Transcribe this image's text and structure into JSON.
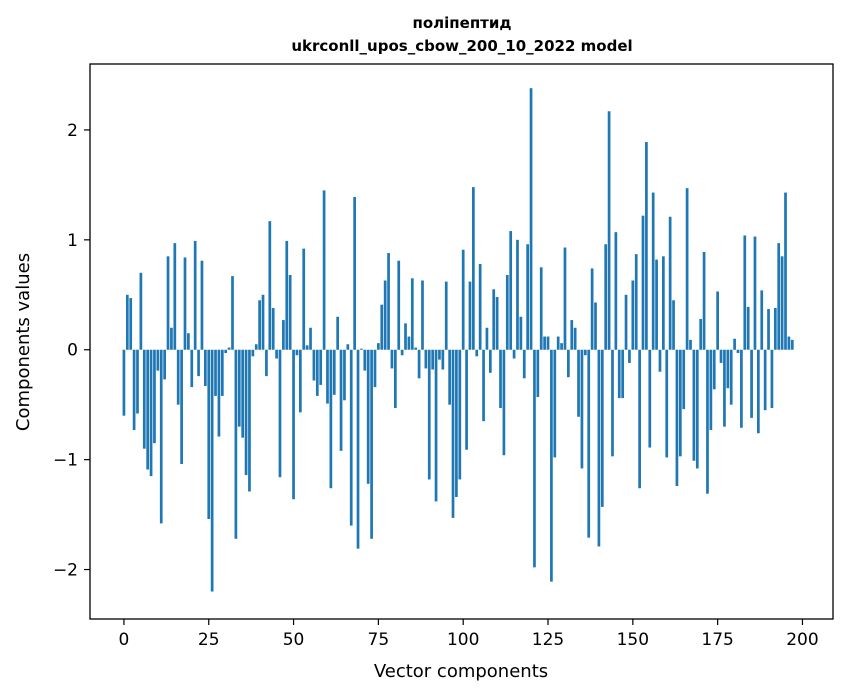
{
  "chart_data": {
    "type": "bar",
    "title": "поліпептид",
    "subtitle": "ukrconll_upos_cbow_200_10_2022 model",
    "xlabel": "Vector components",
    "ylabel": "Components values",
    "xlim": [
      -10,
      209
    ],
    "ylim": [
      -2.45,
      2.6
    ],
    "xticks": [
      0,
      25,
      50,
      75,
      100,
      125,
      150,
      175,
      200
    ],
    "yticks": [
      -2,
      -1,
      0,
      1,
      2
    ],
    "ytick_labels": [
      "−2",
      "−1",
      "0",
      "1",
      "2"
    ],
    "bar_color": "#1f77b4",
    "grid": false,
    "values": [
      -0.6,
      0.5,
      0.47,
      -0.73,
      -0.58,
      0.7,
      -0.9,
      -1.09,
      -1.15,
      -0.85,
      -0.19,
      -1.58,
      -0.27,
      0.85,
      0.2,
      0.97,
      -0.5,
      -1.04,
      0.84,
      0.15,
      -0.34,
      0.99,
      -0.24,
      0.81,
      -0.33,
      -1.54,
      -2.2,
      -0.42,
      -0.79,
      -0.42,
      -0.03,
      0.02,
      0.67,
      -1.72,
      -0.7,
      -0.8,
      -1.14,
      -1.29,
      -0.06,
      0.05,
      0.45,
      0.5,
      -0.24,
      1.17,
      0.38,
      -0.08,
      -1.16,
      0.27,
      0.99,
      0.68,
      -1.36,
      -0.05,
      -0.57,
      0.92,
      0.04,
      0.2,
      -0.28,
      -0.42,
      -0.32,
      1.45,
      -0.49,
      -1.26,
      -0.41,
      0.3,
      -0.92,
      -0.46,
      0.05,
      -1.6,
      1.39,
      -1.81,
      0.01,
      -0.19,
      -1.22,
      -1.72,
      -0.34,
      0.06,
      0.41,
      0.63,
      0.88,
      -0.17,
      -0.53,
      0.81,
      -0.05,
      0.24,
      0.12,
      0.65,
      0.02,
      -0.26,
      0.63,
      -0.17,
      -1.18,
      -0.18,
      -1.38,
      -0.09,
      -0.18,
      0.62,
      -0.5,
      -1.53,
      -1.34,
      -1.18,
      0.91,
      -0.91,
      0.62,
      1.48,
      -0.06,
      0.78,
      -0.65,
      0.2,
      -0.21,
      0.55,
      0.48,
      -0.53,
      -0.96,
      0.68,
      1.08,
      -0.08,
      1.0,
      0.3,
      -0.26,
      0.96,
      2.38,
      -1.98,
      -0.43,
      0.75,
      0.12,
      0.12,
      -2.11,
      -0.98,
      0.12,
      0.06,
      0.93,
      -0.25,
      0.27,
      0.2,
      -0.61,
      -1.08,
      -0.05,
      -1.71,
      0.74,
      0.43,
      -1.79,
      -1.43,
      0.96,
      2.17,
      -0.97,
      1.07,
      -0.44,
      -0.44,
      0.5,
      -0.12,
      0.63,
      0.87,
      -1.26,
      1.22,
      1.89,
      -0.89,
      1.43,
      0.82,
      -0.2,
      0.85,
      -0.98,
      1.21,
      0.45,
      -1.24,
      -0.97,
      -0.54,
      1.47,
      0.09,
      -1.01,
      -1.08,
      0.28,
      0.89,
      -1.31,
      -0.73,
      -0.36,
      0.53,
      -0.12,
      -0.7,
      -0.35,
      -0.5,
      0.1,
      -0.03,
      -0.71,
      1.04,
      0.39,
      -0.62,
      1.03,
      -0.76,
      0.54,
      -0.55,
      0.37,
      -0.53,
      0.38,
      0.97,
      0.85,
      1.43,
      0.12,
      0.09
    ]
  }
}
